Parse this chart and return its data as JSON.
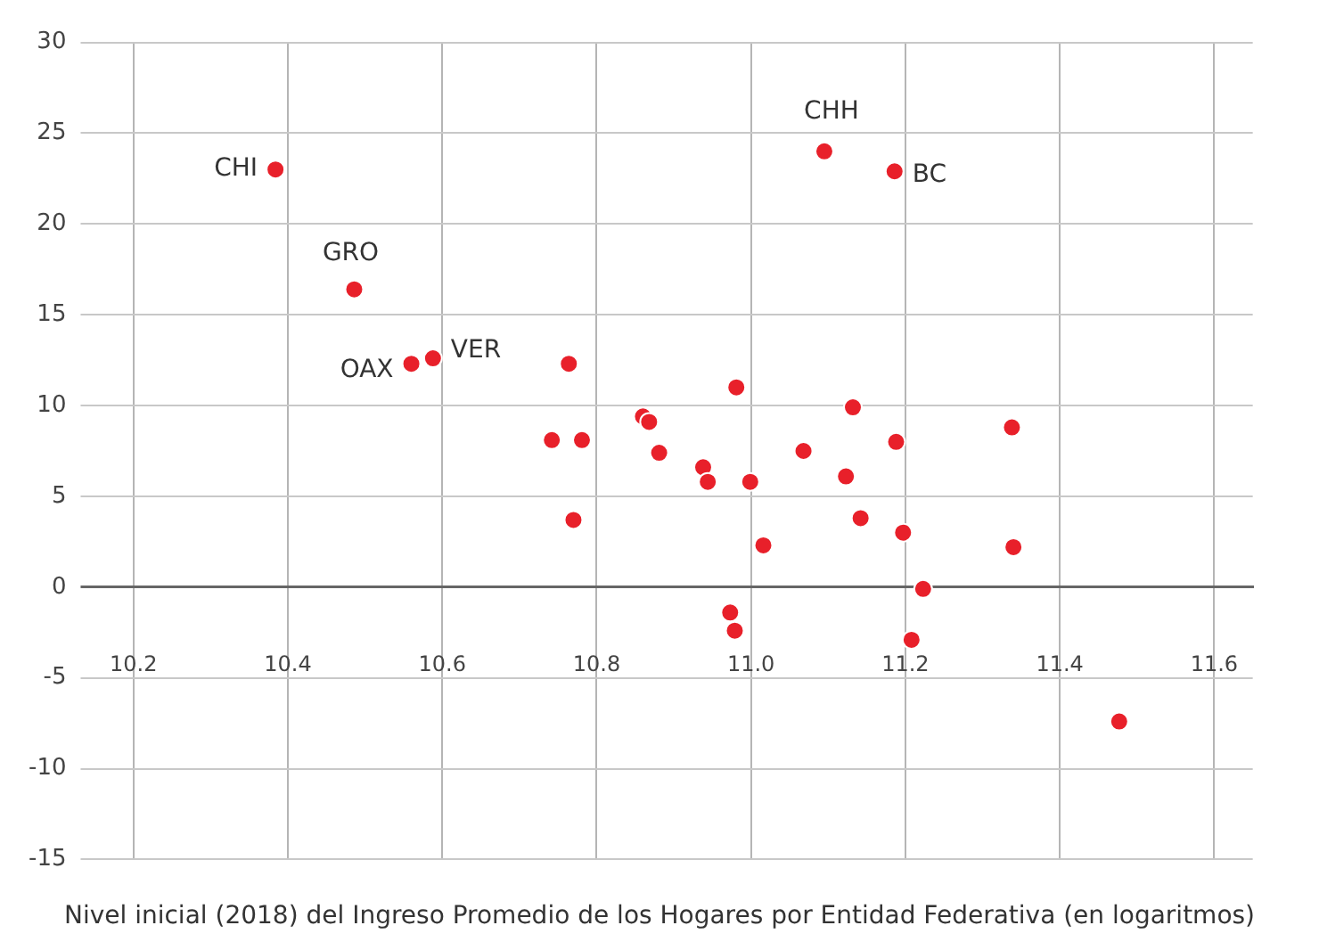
{
  "chart_data": {
    "type": "scatter",
    "xlabel": "Nivel inicial (2018) del Ingreso Promedio de los Hogares por Entidad Federativa (en logaritmos)",
    "series": [
      {
        "color": "#e8202a",
        "x": [
          10.384,
          10.486,
          10.56,
          10.588,
          10.764,
          10.742,
          10.781,
          10.77,
          10.86,
          10.868,
          10.881,
          10.938,
          10.944,
          10.981,
          10.999,
          11.016,
          11.068,
          11.132,
          11.123,
          11.142,
          11.188,
          11.197,
          11.338,
          11.34,
          11.223,
          10.973,
          10.979,
          11.208,
          11.477,
          11.095,
          11.186
        ],
        "values": [
          23.0,
          16.4,
          12.3,
          12.6,
          12.3,
          8.1,
          8.1,
          3.7,
          9.4,
          9.1,
          7.4,
          6.6,
          5.8,
          11.0,
          5.8,
          2.3,
          7.5,
          9.9,
          6.1,
          3.8,
          8.0,
          3.0,
          8.8,
          2.2,
          -0.1,
          -1.4,
          -2.4,
          -2.9,
          -7.4,
          24.0,
          22.9
        ]
      }
    ],
    "xlim": [
      10.15,
      11.65
    ],
    "xticks": [
      10.2,
      10.4,
      10.6,
      10.8,
      {
        "value": 11,
        "label": "11.0"
      },
      11.2,
      11.4,
      11.6
    ],
    "ylim": [
      -15,
      30
    ],
    "yticks": [
      -15,
      -10,
      -5,
      0,
      5,
      10,
      15,
      20,
      25,
      30
    ],
    "grid": true,
    "marker": "circle",
    "legend": false,
    "annotations": [
      {
        "text": "CHI",
        "x": 10.384,
        "y": 23.0
      },
      {
        "text": "GRO",
        "x": 10.486,
        "y": 16.4
      },
      {
        "text": "OAX",
        "x": 10.56,
        "y": 12.3
      },
      {
        "text": "VER",
        "x": 10.588,
        "y": 12.6
      },
      {
        "text": "CHH",
        "x": 11.095,
        "y": 24.0
      },
      {
        "text": "BC",
        "x": 11.186,
        "y": 22.9
      }
    ]
  }
}
